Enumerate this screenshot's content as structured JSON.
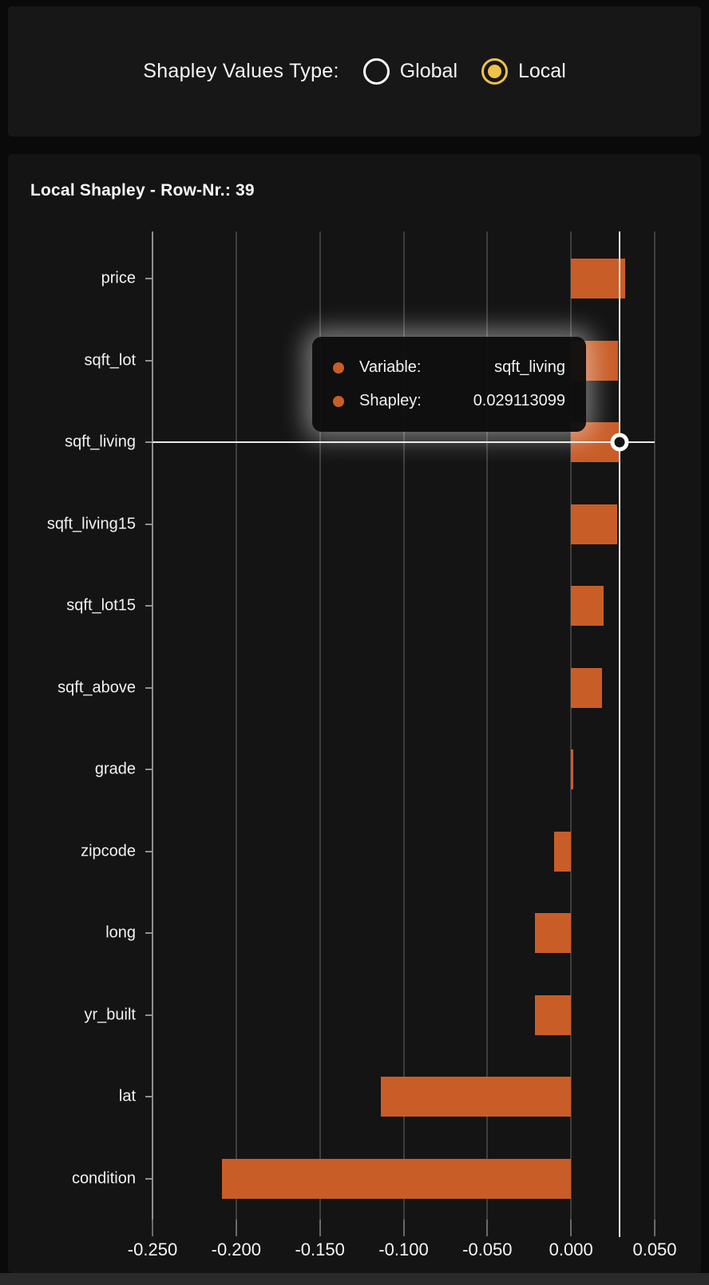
{
  "controls": {
    "label": "Shapley Values Type:",
    "options": [
      {
        "label": "Global",
        "selected": false
      },
      {
        "label": "Local",
        "selected": true
      }
    ]
  },
  "chart_data": {
    "type": "bar",
    "orientation": "horizontal",
    "title": "Local Shapley - Row-Nr.: 39",
    "categories": [
      "price",
      "sqft_lot",
      "sqft_living",
      "sqft_living15",
      "sqft_lot15",
      "sqft_above",
      "grade",
      "zipcode",
      "long",
      "yr_built",
      "lat",
      "condition"
    ],
    "values": [
      0.0323,
      0.0283,
      0.029113099,
      0.0275,
      0.0196,
      0.0186,
      0.0015,
      -0.0102,
      -0.0215,
      -0.0215,
      -0.1137,
      -0.2085
    ],
    "xlabel": "",
    "ylabel": "",
    "xlim": [
      -0.25,
      0.05
    ],
    "xtick_values": [
      -0.25,
      -0.2,
      -0.15,
      -0.1,
      -0.05,
      0.0,
      0.05
    ],
    "xtick_labels": [
      "-0.250",
      "-0.200",
      "-0.150",
      "-0.100",
      "-0.050",
      "0.000",
      "0.050"
    ],
    "grid": true,
    "legend": "none",
    "hovered": {
      "category": "sqft_living",
      "value": 0.029113099
    }
  },
  "tooltip": {
    "rows": [
      {
        "label": "Variable:",
        "value": "sqft_living"
      },
      {
        "label": "Shapley:",
        "value": "0.029113099"
      }
    ]
  },
  "colors": {
    "bar": "#c95d28",
    "accent_yellow": "#f0c14b",
    "page_bg": "#0a0a0a",
    "panel_bg": "#141414",
    "top_panel_bg": "#171717",
    "grid": "#3e3e3e",
    "axis": "#8f8f8f",
    "crosshair": "#e9e9e9",
    "text": "#f5f5f5",
    "footer_bg": "#2a2a2a"
  }
}
